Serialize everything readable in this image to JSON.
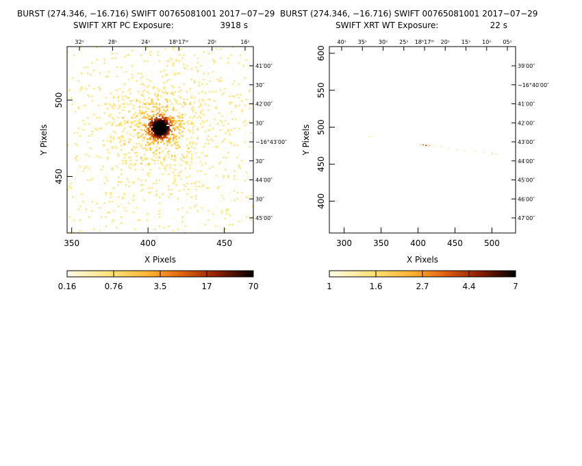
{
  "chart_data": [
    {
      "type": "heatmap",
      "title": "BURST (274.346, −16.716) SWIFT 00765081001 2017−07−29",
      "subtitle_label": "SWIFT XRT PC Exposure:",
      "subtitle_value": "3918 s",
      "xlabel": "X Pixels",
      "ylabel": "Y Pixels",
      "xlim": [
        347,
        469
      ],
      "ylim": [
        413,
        535
      ],
      "xticks": [
        350,
        400,
        450
      ],
      "yticks": [
        450,
        500
      ],
      "ra_labels": [
        "32ˢ",
        "28ˢ",
        "24ˢ",
        "18ʰ17ᵐ",
        "20ˢ",
        "16ˢ"
      ],
      "dec_labels": [
        "41′00″",
        "30″",
        "42′00″",
        "30″",
        "−16°43′00″",
        "30″",
        "44′00″",
        "30″",
        "45′00″"
      ],
      "colorbar_labels": [
        "0.16",
        "0.76",
        "3.5",
        "17",
        "70"
      ],
      "source_center": [
        407.5,
        481.5
      ],
      "peak_counts": 70
    },
    {
      "type": "heatmap",
      "title": "BURST (274.346, −16.716) SWIFT 00765081001 2017−07−29",
      "subtitle_label": "SWIFT XRT WT Exposure:",
      "subtitle_value": "22 s",
      "xlabel": "X Pixels",
      "ylabel": "Y Pixels",
      "xlim": [
        280,
        532
      ],
      "ylim": [
        357,
        609
      ],
      "xticks": [
        300,
        350,
        400,
        450,
        500
      ],
      "yticks": [
        400,
        450,
        500,
        550,
        600
      ],
      "ra_labels": [
        "40ˢ",
        "35ˢ",
        "30ˢ",
        "25ˢ",
        "18ʰ17ᵐ",
        "20ˢ",
        "15ˢ",
        "10ˢ",
        "05ˢ"
      ],
      "dec_labels": [
        "39′00″",
        "−16°40′00″",
        "41′00″",
        "42′00″",
        "43′00″",
        "44′00″",
        "45′00″",
        "46′00″",
        "47′00″"
      ],
      "colorbar_labels": [
        "1",
        "1.6",
        "2.7",
        "4.4",
        "7"
      ],
      "streak_y": 476,
      "streak_x": [
        330,
        505
      ],
      "peak_counts": 7
    }
  ],
  "colors": {
    "heat": [
      "#fffbe0",
      "#ffe680",
      "#ffc640",
      "#ff9a20",
      "#e06a10",
      "#b03a00",
      "#781800",
      "#3c0000",
      "#000000"
    ]
  }
}
